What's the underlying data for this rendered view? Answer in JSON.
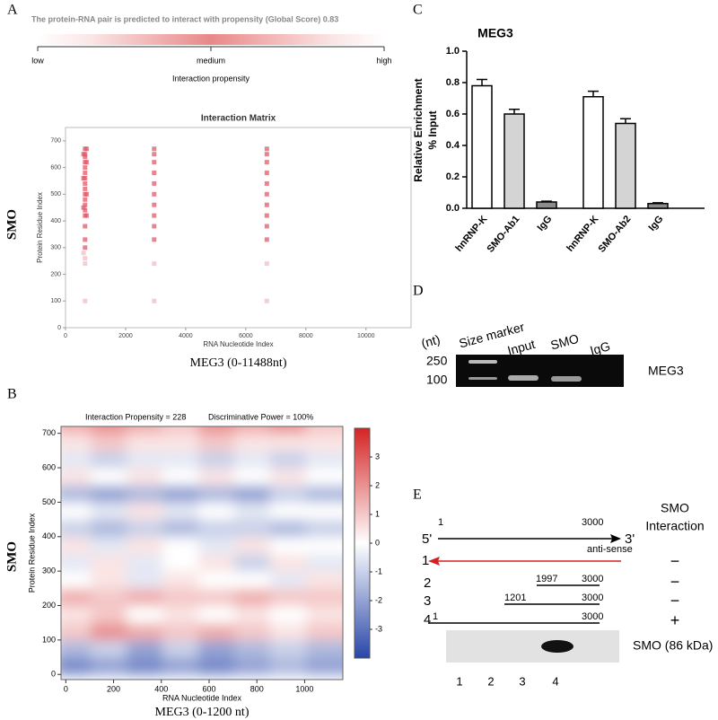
{
  "panel_labels": [
    "A",
    "B",
    "C",
    "D",
    "E"
  ],
  "propensity": {
    "title": "The protein-RNA pair is predicted to interact with propensity (Global Score) 0.83",
    "scale_labels": [
      "low",
      "medium",
      "high"
    ],
    "xlabel": "Interaction propensity"
  },
  "chart_data": [
    {
      "type": "scatter",
      "title": "Interaction Matrix",
      "xlabel": "RNA Nucleotide Index",
      "ylabel": "Protein Residue Index",
      "row_label": "SMO",
      "caption": "MEG3 (0-11488nt)",
      "color": "#e05a6a",
      "x": [
        650,
        650,
        650,
        650,
        650,
        650,
        650,
        650,
        650,
        650,
        650,
        650,
        650,
        650,
        650,
        650,
        650,
        650,
        650,
        650,
        600,
        600,
        600,
        600,
        700,
        700,
        700,
        700,
        2950,
        2950,
        2950,
        2950,
        2950,
        2950,
        2950,
        2950,
        2950,
        2950,
        2950,
        2950,
        6700,
        6700,
        6700,
        6700,
        6700,
        6700,
        6700,
        6700,
        6700,
        6700,
        6700,
        6700
      ],
      "y": [
        100,
        240,
        260,
        300,
        330,
        380,
        420,
        440,
        460,
        480,
        500,
        520,
        540,
        560,
        580,
        600,
        620,
        640,
        650,
        670,
        280,
        450,
        560,
        650,
        420,
        500,
        620,
        670,
        100,
        240,
        330,
        380,
        420,
        460,
        500,
        540,
        580,
        620,
        650,
        670,
        100,
        240,
        330,
        380,
        420,
        460,
        500,
        540,
        580,
        620,
        650,
        670
      ],
      "xlim": [
        0,
        11500
      ],
      "ylim": [
        0,
        750
      ],
      "xticks": [
        0,
        2000,
        4000,
        6000,
        8000,
        10000
      ],
      "yticks": [
        0,
        100,
        200,
        300,
        400,
        500,
        600,
        700
      ]
    },
    {
      "type": "heatmap",
      "annotations": [
        "Interaction Propensity = 228",
        "Discriminative Power = 100%"
      ],
      "xlabel": "RNA Nucleotide Index",
      "ylabel": "Protein Residue Index",
      "row_label": "SMO",
      "caption": "MEG3 (0-1200 nt)",
      "colormap": [
        "#2846a8",
        "#ffffff",
        "#d42424"
      ],
      "x": [
        75,
        225,
        375,
        525,
        675,
        825,
        975,
        1125
      ],
      "y": [
        25,
        75,
        125,
        175,
        225,
        275,
        325,
        375,
        425,
        475,
        525,
        575,
        625,
        675,
        725
      ],
      "z": [
        [
          -2.5,
          -2,
          -2.5,
          -2,
          -2.5,
          -2,
          -1.5,
          -2
        ],
        [
          -1.5,
          -1,
          -2,
          -1,
          -2,
          -1.5,
          -1,
          -1.5
        ],
        [
          1,
          2,
          1.5,
          1,
          1.5,
          1,
          0.5,
          1
        ],
        [
          0.5,
          1,
          0,
          0.5,
          0,
          0.5,
          0,
          0.5
        ],
        [
          1.5,
          1,
          1.5,
          1,
          1,
          1.5,
          1,
          1
        ],
        [
          0,
          0.5,
          -0.5,
          0.5,
          0,
          0,
          -0.5,
          0.5
        ],
        [
          -0.5,
          0.5,
          -0.5,
          0,
          0.5,
          -1,
          0.5,
          -0.5
        ],
        [
          0.5,
          -0.5,
          0.5,
          0,
          -0.5,
          0.5,
          0,
          0
        ],
        [
          -1,
          -1.5,
          -1,
          -1.5,
          -1,
          -1,
          -1.5,
          -1
        ],
        [
          0,
          -0.5,
          0.5,
          -0.5,
          0,
          -0.5,
          0,
          0
        ],
        [
          -1.5,
          -2,
          -1.5,
          -2,
          -1.5,
          -2,
          -1,
          -1.5
        ],
        [
          0.5,
          0,
          0.5,
          0,
          0.5,
          0,
          0.5,
          0
        ],
        [
          -0.5,
          -1,
          -0.5,
          -0.5,
          -1,
          -0.5,
          -1,
          -0.5
        ],
        [
          0.5,
          1,
          0.5,
          0.5,
          1,
          0.5,
          0.5,
          0.5
        ],
        [
          1.5,
          2,
          1.5,
          1,
          2,
          1.5,
          2,
          1
        ]
      ],
      "zlim": [
        -4,
        4
      ],
      "zticks": [
        -3,
        -2,
        -1,
        0,
        1,
        2,
        3
      ],
      "xlim": [
        -20,
        1160
      ],
      "ylim": [
        -15,
        720
      ],
      "xticks": [
        0,
        200,
        400,
        600,
        800,
        1000
      ],
      "yticks": [
        0,
        100,
        200,
        300,
        400,
        500,
        600,
        700
      ]
    },
    {
      "type": "bar",
      "title": "MEG3",
      "ylabel": [
        "Relative Enrichment",
        "% Input"
      ],
      "categories": [
        "hnRNP-K",
        "SMO-Ab1",
        "IgG",
        "hnRNP-K",
        "SMO-Ab2",
        "IgG"
      ],
      "values": [
        0.78,
        0.6,
        0.04,
        0.71,
        0.54,
        0.03
      ],
      "errors": [
        0.04,
        0.03,
        0.005,
        0.035,
        0.03,
        0.005
      ],
      "colors": [
        "#ffffff",
        "#d4d4d4",
        "#8c8c8c",
        "#ffffff",
        "#d4d4d4",
        "#8c8c8c"
      ],
      "ylim": [
        0,
        1
      ],
      "yticks": [
        {
          "value": 0,
          "label": "0.0"
        },
        0.2,
        0.4,
        0.6,
        0.8,
        {
          "value": 1,
          "label": "1.0"
        }
      ]
    }
  ],
  "gel": {
    "unit": "(nt)",
    "lanes": [
      "Size marker",
      "Input",
      "SMO",
      "IgG"
    ],
    "sizes": [
      "250",
      "100"
    ],
    "target": "MEG3"
  },
  "constructs": {
    "header": [
      "SMO",
      "Interaction"
    ],
    "start": "1",
    "end": "3000",
    "five": "5'",
    "three": "3'",
    "antisense": "anti-sense",
    "rows": [
      {
        "id": "1",
        "sign": "−"
      },
      {
        "id": "2",
        "from": "1997",
        "to": "3000",
        "sign": "−"
      },
      {
        "id": "3",
        "from": "1201",
        "to": "3000",
        "sign": "−"
      },
      {
        "id": "4",
        "from": "1",
        "to": "3000",
        "sign": "+"
      }
    ]
  },
  "blot": {
    "label": "SMO (86 kDa)",
    "lanes": [
      "1",
      "2",
      "3",
      "4"
    ]
  }
}
